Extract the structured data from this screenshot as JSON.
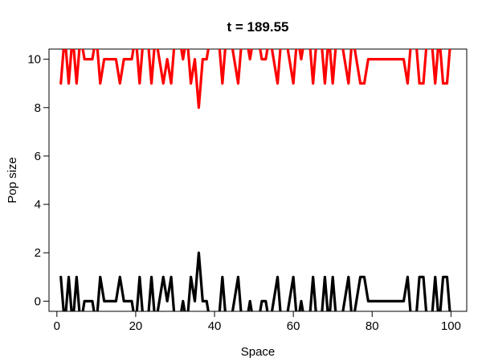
{
  "chart_data": {
    "type": "line",
    "title": "t = 189.55",
    "xlabel": "Space",
    "ylabel": "Pop size",
    "xlim": [
      -2,
      104
    ],
    "ylim": [
      -0.42,
      10.42
    ],
    "xticks": [
      0,
      20,
      40,
      60,
      80,
      100
    ],
    "yticks": [
      0,
      2,
      4,
      6,
      8,
      10
    ],
    "grid": false,
    "legend": "none",
    "x": [
      1,
      2,
      3,
      4,
      5,
      6,
      7,
      8,
      9,
      10,
      11,
      12,
      13,
      14,
      15,
      16,
      17,
      18,
      19,
      20,
      21,
      22,
      23,
      24,
      25,
      26,
      27,
      28,
      29,
      30,
      31,
      32,
      33,
      34,
      35,
      36,
      37,
      38,
      39,
      40,
      41,
      42,
      43,
      44,
      45,
      46,
      47,
      48,
      49,
      50,
      51,
      52,
      53,
      54,
      55,
      56,
      57,
      58,
      59,
      60,
      61,
      62,
      63,
      64,
      65,
      66,
      67,
      68,
      69,
      70,
      71,
      72,
      73,
      74,
      75,
      76,
      77,
      78,
      79,
      80,
      81,
      82,
      83,
      84,
      85,
      86,
      87,
      88,
      89,
      90,
      91,
      92,
      93,
      94,
      95,
      96,
      97,
      98,
      99,
      100
    ],
    "series": [
      {
        "color": "#ff0000",
        "values": [
          9,
          11,
          9,
          11,
          9,
          11,
          10,
          10,
          10,
          11,
          9,
          10,
          10,
          10,
          10,
          9,
          10,
          10,
          10,
          11,
          9,
          11,
          11,
          9,
          11,
          10,
          9,
          10,
          9,
          11,
          11,
          10,
          11,
          9,
          10,
          8,
          10,
          10,
          11,
          11,
          11,
          9,
          11,
          11,
          10,
          9,
          11,
          11,
          10,
          11,
          11,
          10,
          10,
          11,
          10,
          9,
          11,
          11,
          10,
          9,
          11,
          10,
          11,
          11,
          9,
          11,
          11,
          9,
          11,
          9,
          11,
          11,
          10,
          9,
          11,
          10,
          9,
          9,
          10,
          10,
          10,
          10,
          10,
          10,
          10,
          10,
          10,
          10,
          9,
          11,
          11,
          9,
          9,
          11,
          11,
          9,
          11,
          9,
          9,
          11
        ],
        "name": ""
      },
      {
        "color": "#000000",
        "values": [
          1,
          -1,
          1,
          -1,
          1,
          -1,
          0,
          0,
          0,
          -1,
          1,
          0,
          0,
          0,
          0,
          1,
          0,
          0,
          0,
          -1,
          1,
          -1,
          -1,
          1,
          -1,
          0,
          1,
          0,
          1,
          -1,
          -1,
          0,
          -1,
          1,
          0,
          2,
          0,
          0,
          -1,
          -1,
          -1,
          1,
          -1,
          -1,
          0,
          1,
          -1,
          -1,
          0,
          -1,
          -1,
          0,
          0,
          -1,
          0,
          1,
          -1,
          -1,
          0,
          1,
          -1,
          0,
          -1,
          -1,
          1,
          -1,
          -1,
          1,
          -1,
          1,
          -1,
          -1,
          0,
          1,
          -1,
          0,
          1,
          1,
          0,
          0,
          0,
          0,
          0,
          0,
          0,
          0,
          0,
          0,
          1,
          -1,
          -1,
          1,
          1,
          -1,
          -1,
          1,
          -1,
          1,
          1,
          -1
        ],
        "name": ""
      }
    ]
  }
}
